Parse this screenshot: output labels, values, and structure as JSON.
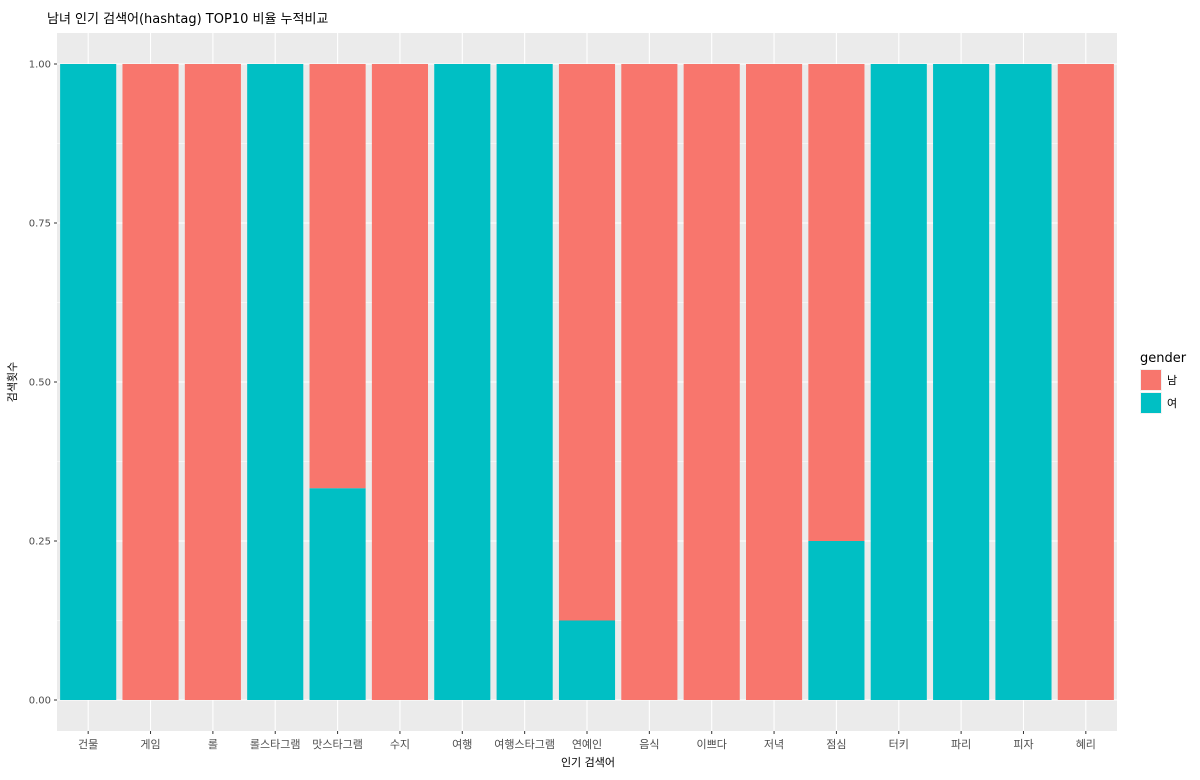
{
  "chart_data": {
    "type": "bar",
    "stacked": true,
    "title": "남녀 인기 검색어(hashtag) TOP10 비율 누적비교",
    "xlabel": "인기 검색어",
    "ylabel": "검색횟수",
    "ylim": [
      0,
      1
    ],
    "yticks": [
      "0.00",
      "0.25",
      "0.50",
      "0.75",
      "1.00"
    ],
    "grid": true,
    "legend_position": "right",
    "legend_title": "gender",
    "categories": [
      "건물",
      "게임",
      "롤",
      "롤스타그램",
      "맛스타그램",
      "수지",
      "여행",
      "여행스타그램",
      "연예인",
      "음식",
      "이쁘다",
      "저녁",
      "점심",
      "터키",
      "파리",
      "피자",
      "혜리"
    ],
    "series": [
      {
        "name": "남",
        "color": "#F8766D",
        "values": [
          0,
          1,
          1,
          0,
          0.667,
          1,
          0,
          0,
          0.875,
          1,
          1,
          1,
          0.75,
          0,
          0,
          0,
          1
        ]
      },
      {
        "name": "여",
        "color": "#00BFC4",
        "values": [
          1,
          0,
          0,
          1,
          0.333,
          0,
          1,
          1,
          0.125,
          0,
          0,
          0,
          0.25,
          1,
          1,
          1,
          0
        ]
      }
    ],
    "panel_background": "#EBEBEB",
    "grid_color": "#FFFFFF"
  }
}
